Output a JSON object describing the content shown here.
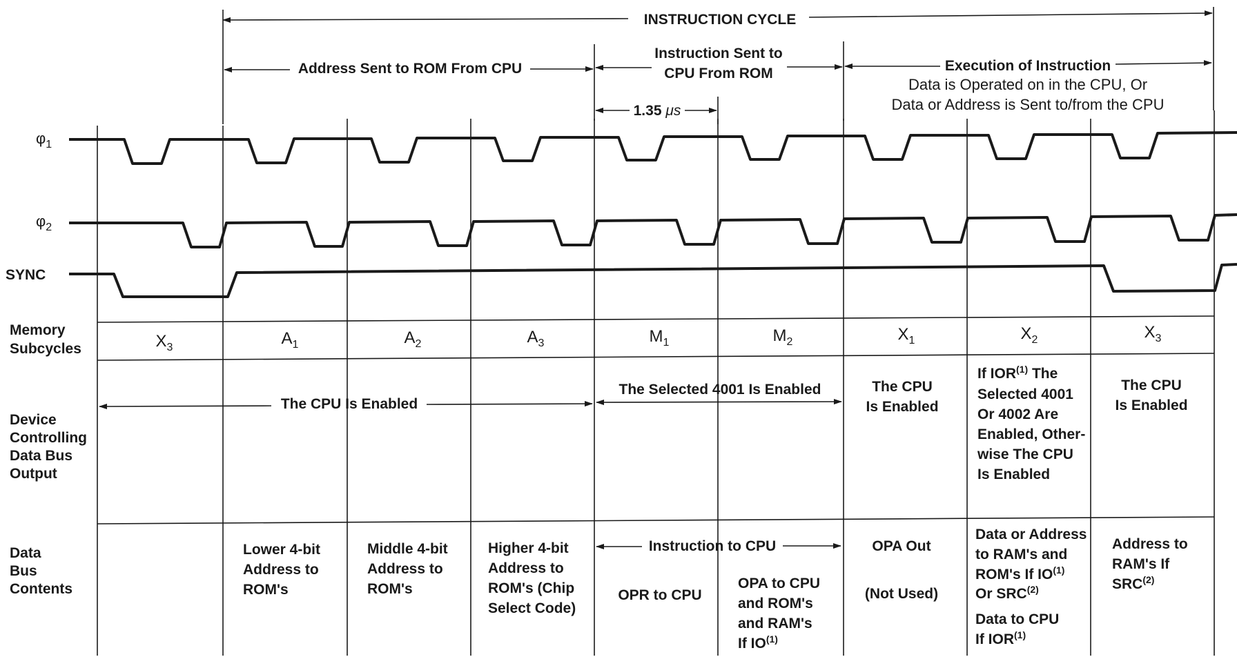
{
  "header": {
    "instruction_cycle": "INSTRUCTION CYCLE",
    "address_sent": "Address Sent to ROM From CPU",
    "instruction_sent": [
      "Instruction Sent to",
      "CPU From ROM"
    ],
    "execution": "Execution of Instruction",
    "execution_sub": [
      "Data is Operated on in the CPU, Or",
      "Data or Address is Sent to/from the CPU"
    ],
    "period": "1.35",
    "period_unit": "μs"
  },
  "signals": {
    "phi1": {
      "base": "φ",
      "sub": "1"
    },
    "phi2": {
      "base": "φ",
      "sub": "2"
    },
    "sync": "SYNC"
  },
  "rows": {
    "memory_subcycles": [
      "Memory",
      "Subcycles"
    ],
    "device_controlling": [
      "Device",
      "Controlling",
      "Data Bus",
      "Output"
    ],
    "data_bus_contents": [
      "Data",
      "Bus",
      "Contents"
    ]
  },
  "subcycles": [
    {
      "base": "X",
      "sub": "3"
    },
    {
      "base": "A",
      "sub": "1"
    },
    {
      "base": "A",
      "sub": "2"
    },
    {
      "base": "A",
      "sub": "3"
    },
    {
      "base": "M",
      "sub": "1"
    },
    {
      "base": "M",
      "sub": "2"
    },
    {
      "base": "X",
      "sub": "1"
    },
    {
      "base": "X",
      "sub": "2"
    },
    {
      "base": "X",
      "sub": "3"
    }
  ],
  "device": {
    "cpu_enabled": "The CPU Is Enabled",
    "rom_enabled": "The Selected 4001 Is Enabled",
    "x1": [
      "The CPU",
      "Is Enabled"
    ],
    "x2": {
      "line1": "If IOR",
      "line1_sup": "(1)",
      "line1_tail": " The",
      "rest": [
        "Selected 4001",
        "Or 4002 Are",
        "Enabled, Other-",
        "wise The CPU",
        "Is Enabled"
      ]
    },
    "x3": [
      "The CPU",
      "Is Enabled"
    ]
  },
  "bus": {
    "a1": [
      "Lower 4-bit",
      "Address to",
      "ROM's"
    ],
    "a2": [
      "Middle 4-bit",
      "Address to",
      "ROM's"
    ],
    "a3": [
      "Higher 4-bit",
      "Address to",
      "ROM's (Chip",
      "Select Code)"
    ],
    "instr_to_cpu": "Instruction to CPU",
    "m1": "OPR to CPU",
    "m2": {
      "lines": [
        "OPA to CPU",
        "and ROM's",
        "and RAM's"
      ],
      "last": "If IO",
      "last_sup": "(1)"
    },
    "x1": [
      "OPA Out",
      "(Not Used)"
    ],
    "x2": {
      "l1": "Data or Address",
      "l2": "to RAM's and",
      "l3": "ROM's If IO",
      "l3_sup": "(1)",
      "l4": "Or SRC",
      "l4_sup": "(2)",
      "l5": "Data to CPU",
      "l6": "If IOR",
      "l6_sup": "(1)"
    },
    "x3": {
      "l1": "Address to",
      "l2": "RAM's If",
      "l3": "SRC",
      "l3_sup": "(2)"
    }
  }
}
